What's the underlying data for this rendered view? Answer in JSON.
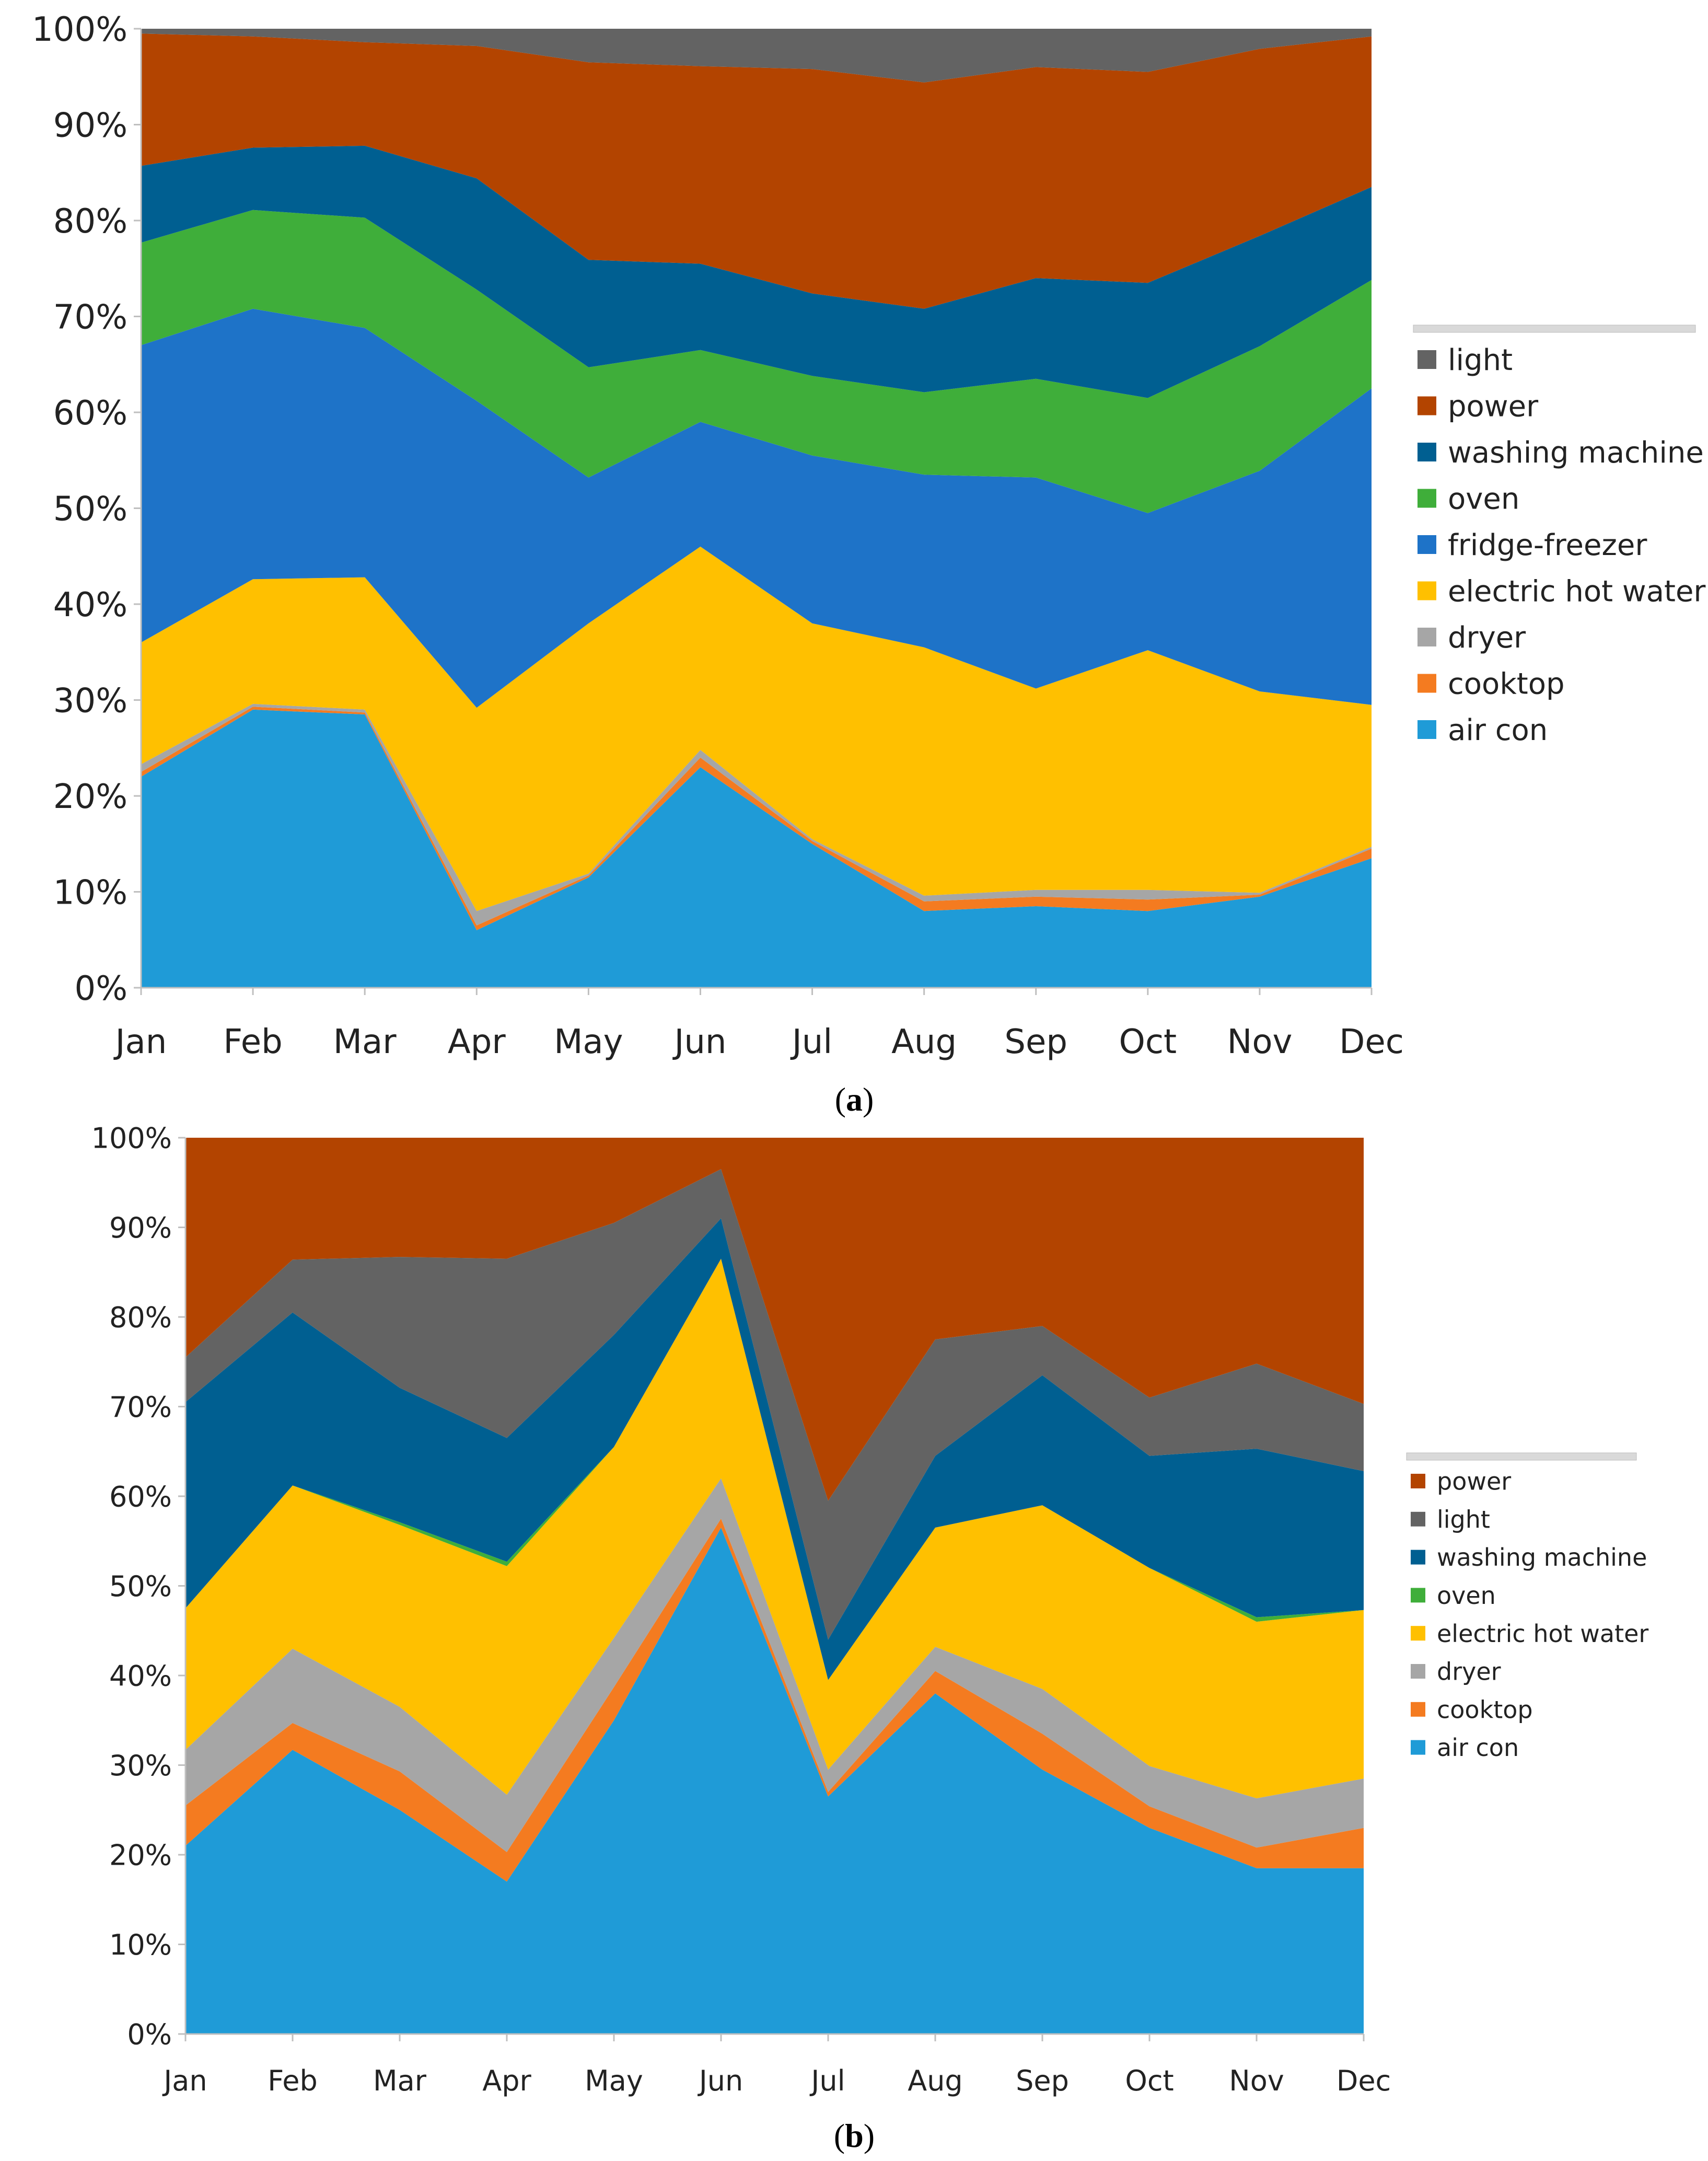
{
  "colors": {
    "light": "#636363",
    "power": "#b34400",
    "washing machine": "#005f91",
    "oven": "#3fae3a",
    "fridge-freezer": "#1e73c8",
    "electric hot water": "#ffc000",
    "dryer": "#a6a6a6",
    "cooktop": "#f47b20",
    "air con": "#1f9bd7"
  },
  "chart_data": [
    {
      "type": "area",
      "stacked": true,
      "caption": "(a)",
      "categories": [
        "Jan",
        "Feb",
        "Mar",
        "Apr",
        "May",
        "Jun",
        "Jul",
        "Aug",
        "Sep",
        "Oct",
        "Nov",
        "Dec"
      ],
      "yticks": [
        "0%",
        "10%",
        "20%",
        "30%",
        "40%",
        "50%",
        "60%",
        "70%",
        "80%",
        "90%",
        "100%"
      ],
      "ylim": [
        0,
        100
      ],
      "legend_position": "right",
      "legend_order": [
        "light",
        "power",
        "washing machine",
        "oven",
        "fridge-freezer",
        "electric hot water",
        "dryer",
        "cooktop",
        "air con"
      ],
      "series": [
        {
          "name": "air con",
          "values": [
            22,
            29,
            28.5,
            6,
            11.5,
            23,
            15,
            8,
            8.5,
            8,
            9.5,
            13.5
          ]
        },
        {
          "name": "cooktop",
          "values": [
            0.5,
            0.3,
            0.2,
            0.5,
            0.2,
            1,
            0.3,
            1,
            1,
            1.2,
            0.2,
            1
          ]
        },
        {
          "name": "dryer",
          "values": [
            0.8,
            0.3,
            0.3,
            1.5,
            0.2,
            0.8,
            0.2,
            0.6,
            0.7,
            1,
            0.2,
            0.2
          ]
        },
        {
          "name": "electric hot water",
          "values": [
            12.7,
            13,
            13.8,
            21.2,
            26.1,
            21.2,
            22.5,
            25.9,
            21,
            25,
            21,
            14.8
          ]
        },
        {
          "name": "fridge-freezer",
          "values": [
            31,
            28.2,
            26,
            32,
            15.2,
            13,
            17.5,
            18,
            22,
            14.3,
            23,
            33
          ]
        },
        {
          "name": "oven",
          "values": [
            10.7,
            10.3,
            11.5,
            11.6,
            11.5,
            7.5,
            8.3,
            8.6,
            10.3,
            12,
            13,
            11.3
          ]
        },
        {
          "name": "washing machine",
          "values": [
            8,
            6.5,
            7.5,
            11.6,
            11.2,
            9,
            8.6,
            8.7,
            10.5,
            12,
            11.5,
            9.7
          ]
        },
        {
          "name": "power",
          "values": [
            13.8,
            11.6,
            10.8,
            13.8,
            20.6,
            20.6,
            23.4,
            23.6,
            22,
            22,
            19.5,
            15.7
          ]
        },
        {
          "name": "light",
          "values": [
            0.5,
            0.8,
            1.4,
            1.8,
            3.5,
            3.9,
            4.2,
            5.6,
            4,
            4.5,
            2.1,
            0.8
          ]
        }
      ]
    },
    {
      "type": "area",
      "stacked": true,
      "caption": "(b)",
      "categories": [
        "Jan",
        "Feb",
        "Mar",
        "Apr",
        "May",
        "Jun",
        "Jul",
        "Aug",
        "Sep",
        "Oct",
        "Nov",
        "Dec"
      ],
      "yticks": [
        "0%",
        "10%",
        "20%",
        "30%",
        "40%",
        "50%",
        "60%",
        "70%",
        "80%",
        "90%",
        "100%"
      ],
      "ylim": [
        0,
        100
      ],
      "legend_position": "right",
      "legend_order": [
        "power",
        "light",
        "washing machine",
        "oven",
        "electric hot water",
        "dryer",
        "cooktop",
        "air con"
      ],
      "series": [
        {
          "name": "air con",
          "values": [
            21,
            31.7,
            25,
            17,
            35,
            56.5,
            26.5,
            38,
            29.5,
            23,
            18.5,
            18.5
          ]
        },
        {
          "name": "cooktop",
          "values": [
            4.5,
            3,
            4.3,
            3.3,
            3.7,
            1,
            0.5,
            2.5,
            4,
            2.4,
            2.3,
            4.5
          ]
        },
        {
          "name": "dryer",
          "values": [
            6.2,
            8.3,
            7.2,
            6.4,
            5.5,
            4.5,
            2.5,
            2.7,
            5,
            4.5,
            5.5,
            5.5
          ]
        },
        {
          "name": "electric hot water",
          "values": [
            15.8,
            18.2,
            20.3,
            25.5,
            21.3,
            24.5,
            10,
            13.3,
            20.5,
            22.1,
            19.7,
            18.8
          ]
        },
        {
          "name": "oven",
          "values": [
            0,
            0,
            0.3,
            0.5,
            0,
            0,
            0,
            0,
            0,
            0,
            0.5,
            0
          ]
        },
        {
          "name": "washing machine",
          "values": [
            23,
            19.3,
            15,
            13.8,
            12.5,
            4.5,
            4.5,
            8,
            14.5,
            12.5,
            18.8,
            15.5
          ]
        },
        {
          "name": "light",
          "values": [
            5,
            5.9,
            14.6,
            20,
            12.5,
            5.5,
            15.5,
            13,
            5.5,
            6.5,
            9.5,
            7.5
          ]
        },
        {
          "name": "power",
          "values": [
            24.5,
            13.6,
            13.3,
            13.5,
            9.5,
            3.5,
            40.5,
            22.5,
            21,
            29,
            25.2,
            29.7
          ]
        }
      ]
    }
  ]
}
